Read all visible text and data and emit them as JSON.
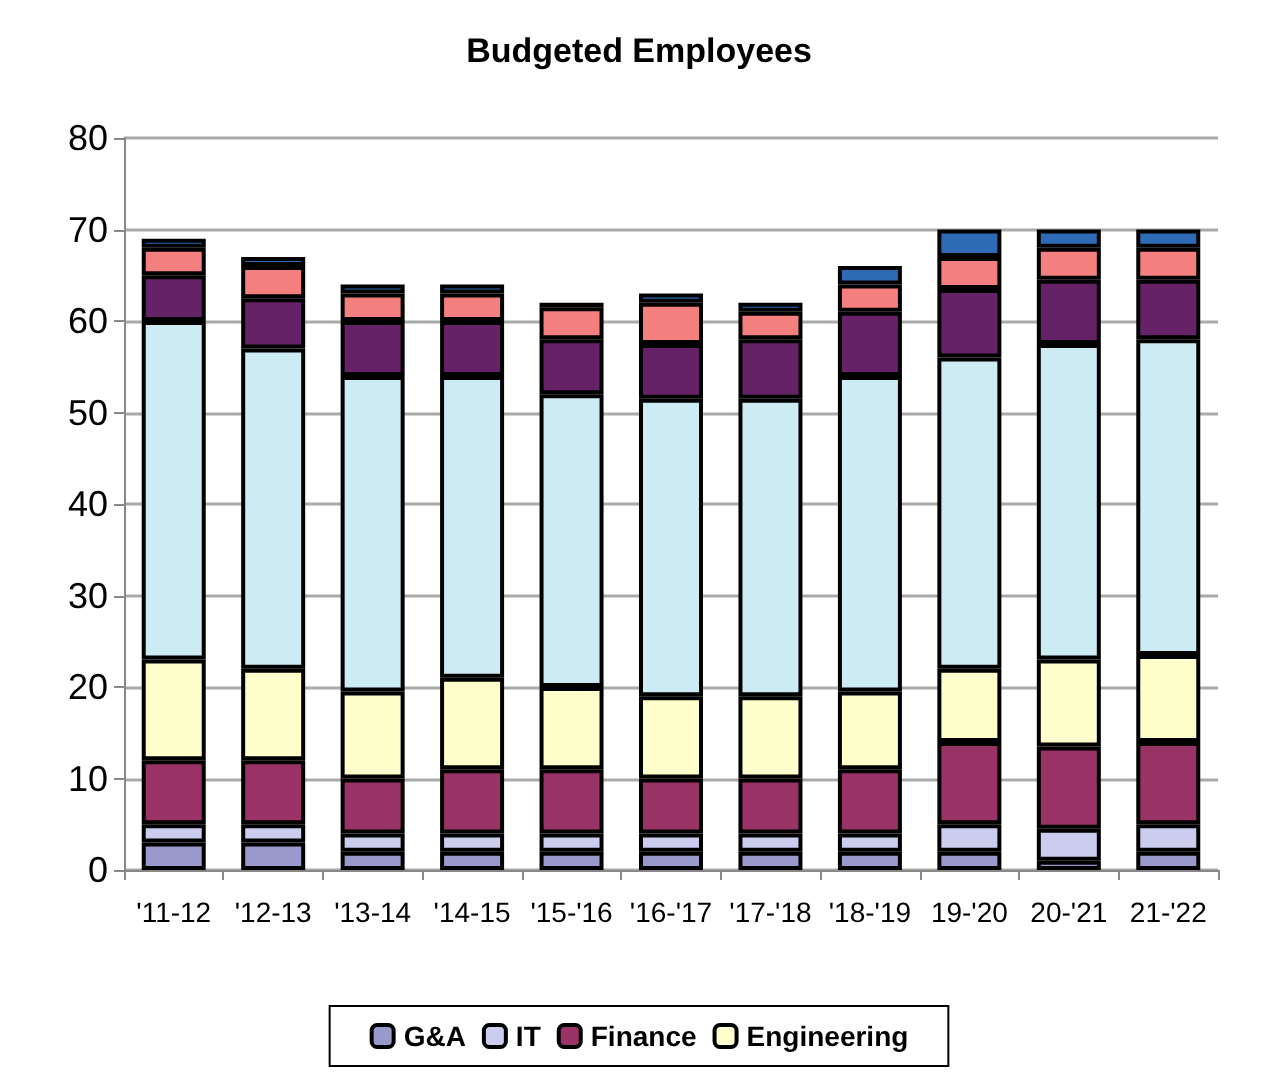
{
  "chart_data": {
    "type": "bar",
    "title": "Budgeted Employees",
    "stacked": true,
    "grid": "y",
    "legend": "bottom",
    "categories": [
      "'11-12",
      "'12-13",
      "'13-14",
      "'14-15",
      "'15-'16",
      "'16-'17",
      "'17-'18",
      "'18-'19",
      "19-'20",
      "20-'21",
      "21-'22"
    ],
    "ylim": [
      0,
      80
    ],
    "yticks": [
      0,
      10,
      20,
      30,
      40,
      50,
      60,
      70,
      80
    ],
    "series": [
      {
        "name": "G&A",
        "color": "#9999cc",
        "values": [
          3,
          3,
          2,
          2,
          2,
          2,
          2,
          2,
          2,
          1,
          2
        ]
      },
      {
        "name": "IT",
        "color": "#ccccee",
        "values": [
          2,
          2,
          2,
          2,
          2,
          2,
          2,
          2,
          3,
          3.5,
          3
        ]
      },
      {
        "name": "Finance",
        "color": "#993366",
        "values": [
          7,
          7,
          6,
          7,
          7,
          6,
          6,
          7,
          9,
          9,
          9
        ]
      },
      {
        "name": "Engineering",
        "color": "#ffffcc",
        "values": [
          11,
          10,
          9.5,
          10,
          9,
          9,
          9,
          8.5,
          8,
          9.5,
          9.5
        ]
      },
      {
        "color": "#cdebf3",
        "values": [
          37,
          35,
          34.5,
          33,
          32,
          32.5,
          32.5,
          34.5,
          34,
          34.5,
          34.5
        ]
      },
      {
        "color": "#662266",
        "values": [
          5,
          5.5,
          6,
          6,
          6,
          6,
          6.5,
          7,
          7.5,
          7,
          6.5
        ]
      },
      {
        "color": "#f47f7f",
        "values": [
          3,
          3.5,
          3,
          3,
          3.5,
          4.5,
          3,
          3,
          3.5,
          3.5,
          3.5
        ]
      },
      {
        "color": "#2e6bb7",
        "values": [
          1,
          1,
          1,
          1,
          0.5,
          1,
          1,
          2,
          3,
          2,
          2
        ]
      }
    ]
  }
}
